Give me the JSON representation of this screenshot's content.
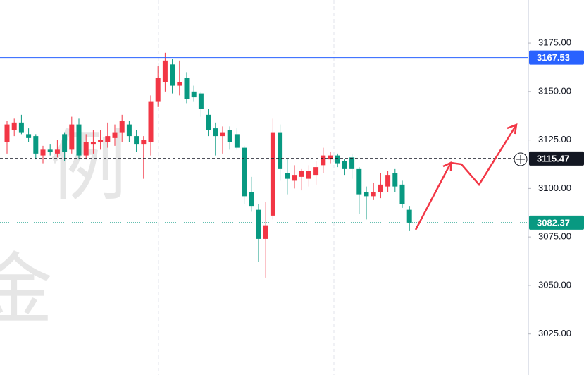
{
  "chart_data": {
    "type": "candlestick",
    "watermark": [
      "，例",
      "金"
    ],
    "up_color": "#f23645",
    "down_color": "#089981",
    "open": [
      3124,
      3130,
      3134,
      3128,
      3127,
      3117,
      3120,
      3118,
      3128,
      3120,
      3133,
      3117,
      3123,
      3124,
      3124,
      3126,
      3129,
      3133,
      3127,
      3123,
      3124,
      3145,
      3155,
      3164,
      3153,
      3157,
      3150,
      3149,
      3138,
      3131,
      3127,
      3130,
      3128,
      3121,
      3098,
      3089,
      3074,
      3086,
      3129,
      3108,
      3104,
      3106,
      3105,
      3107,
      3112,
      3115,
      3117,
      3114,
      3116,
      3110,
      3098,
      3096,
      3098,
      3101,
      3108,
      3102,
      3089
    ],
    "high": [
      3135,
      3136,
      3138,
      3131,
      3128,
      3122,
      3123,
      3125,
      3129,
      3137,
      3136,
      3128,
      3130,
      3130,
      3134,
      3133,
      3138,
      3135,
      3130,
      3127,
      3148,
      3163,
      3170,
      3167,
      3166,
      3160,
      3153,
      3150,
      3141,
      3134,
      3132,
      3132,
      3131,
      3122,
      3106,
      3092,
      3093,
      3136,
      3133,
      3115,
      3112,
      3110,
      3112,
      3114,
      3121,
      3119,
      3118,
      3115,
      3118,
      3111,
      3101,
      3103,
      3108,
      3109,
      3110,
      3104,
      3091
    ],
    "low": [
      3118,
      3127,
      3128,
      3124,
      3115,
      3113,
      3117,
      3116,
      3114,
      3118,
      3115,
      3115,
      3118,
      3120,
      3121,
      3122,
      3124,
      3124,
      3119,
      3105,
      3117,
      3142,
      3150,
      3149,
      3148,
      3144,
      3145,
      3137,
      3127,
      3117,
      3118,
      3120,
      3120,
      3092,
      3088,
      3062,
      3054,
      3084,
      3104,
      3097,
      3100,
      3099,
      3101,
      3102,
      3108,
      3113,
      3111,
      3107,
      3105,
      3087,
      3084,
      3094,
      3095,
      3098,
      3098,
      3090,
      3078
    ],
    "close": [
      3133,
      3134,
      3129,
      3126,
      3118,
      3120,
      3119,
      3120,
      3119,
      3133,
      3117,
      3124,
      3124,
      3125,
      3127,
      3129,
      3135,
      3127,
      3123,
      3125,
      3145,
      3157,
      3166,
      3153,
      3155,
      3146,
      3147,
      3141,
      3130,
      3127,
      3129,
      3124,
      3121,
      3096,
      3091,
      3074,
      3081,
      3129,
      3110,
      3105,
      3107,
      3109,
      3109,
      3111,
      3117,
      3117,
      3113,
      3110,
      3110,
      3097,
      3096,
      3098,
      3102,
      3107,
      3101,
      3092,
      3082.37
    ],
    "ylim": [
      3003.8,
      3197.2
    ],
    "yticks": [
      {
        "value": 3025,
        "label": "3025.00"
      },
      {
        "value": 3050,
        "label": "3050.00"
      },
      {
        "value": 3075,
        "label": "3075.00"
      },
      {
        "value": 3100,
        "label": "3100.00"
      },
      {
        "value": 3125,
        "label": "3125.00"
      },
      {
        "value": 3150,
        "label": "3150.00"
      },
      {
        "value": 3175,
        "label": "3175.00"
      }
    ],
    "price_lines": [
      {
        "value": 3167.53,
        "label": "3167.53",
        "color": "#2962ff",
        "style": "solid"
      },
      {
        "value": 3115.47,
        "label": "3115.47",
        "color": "#131722",
        "style": "dashed"
      },
      {
        "value": 3082.37,
        "label": "3082.37",
        "color": "#089981",
        "style": "dotted"
      }
    ]
  }
}
